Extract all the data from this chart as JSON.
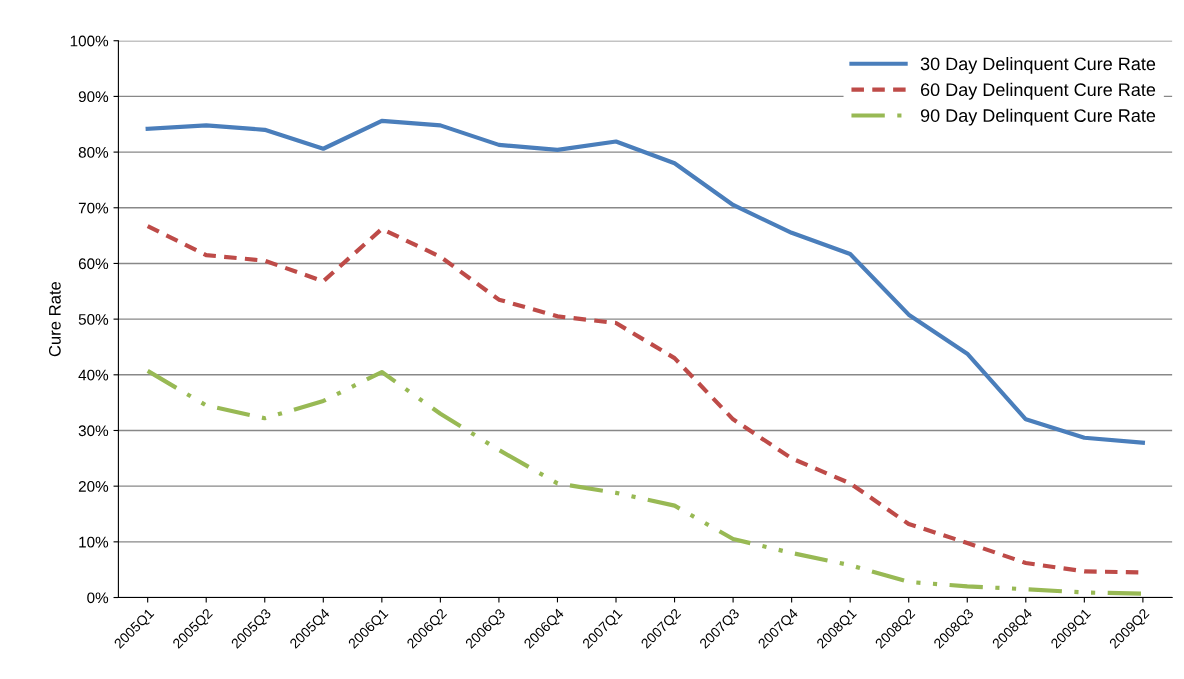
{
  "chart_data": {
    "type": "line",
    "ylabel": "Cure Rate",
    "categories": [
      "2005Q1",
      "2005Q2",
      "2005Q3",
      "2005Q4",
      "2006Q1",
      "2006Q2",
      "2006Q3",
      "2006Q4",
      "2007Q1",
      "2007Q2",
      "2007Q3",
      "2007Q4",
      "2008Q1",
      "2008Q2",
      "2008Q3",
      "2008Q4",
      "2009Q1",
      "2009Q2"
    ],
    "series": [
      {
        "name": "30 Day Delinquent Cure Rate",
        "color": "#4a7ebb",
        "line_style": "solid",
        "values": [
          84.2,
          84.8,
          84,
          80.6,
          85.6,
          84.8,
          81.3,
          80.4,
          81.9,
          78,
          70.5,
          65.5,
          61.7,
          50.8,
          43.8,
          32,
          28.7,
          27.8
        ]
      },
      {
        "name": "60 Day Delinquent Cure Rate",
        "color": "#be4b48",
        "line_style": "dashed",
        "values": [
          66.7,
          61.5,
          60.5,
          56.8,
          66.2,
          61.2,
          53.5,
          50.5,
          49.3,
          43,
          32,
          25,
          20.5,
          13.2,
          9.8,
          6.2,
          4.7,
          4.5
        ]
      },
      {
        "name": "90 Day Delinquent Cure Rate",
        "color": "#98b954",
        "line_style": "dashdotdot",
        "values": [
          40.7,
          34.5,
          32.2,
          35.3,
          40.5,
          33,
          26.5,
          20.5,
          18.8,
          16.5,
          10.5,
          8,
          5.8,
          2.8,
          2,
          1.5,
          0.9,
          0.7
        ]
      }
    ],
    "ylim": [
      0,
      100
    ],
    "yticks": [
      {
        "value": 0,
        "label": "0%"
      },
      {
        "value": 10,
        "label": "10%"
      },
      {
        "value": 20,
        "label": "20%"
      },
      {
        "value": 30,
        "label": "30%"
      },
      {
        "value": 40,
        "label": "40%"
      },
      {
        "value": 50,
        "label": "50%"
      },
      {
        "value": 60,
        "label": "60%"
      },
      {
        "value": 70,
        "label": "70%"
      },
      {
        "value": 80,
        "label": "80%"
      },
      {
        "value": 90,
        "label": "90%"
      },
      {
        "value": 100,
        "label": "100%"
      }
    ],
    "grid": "y",
    "legend": "top right",
    "marker": "none"
  }
}
